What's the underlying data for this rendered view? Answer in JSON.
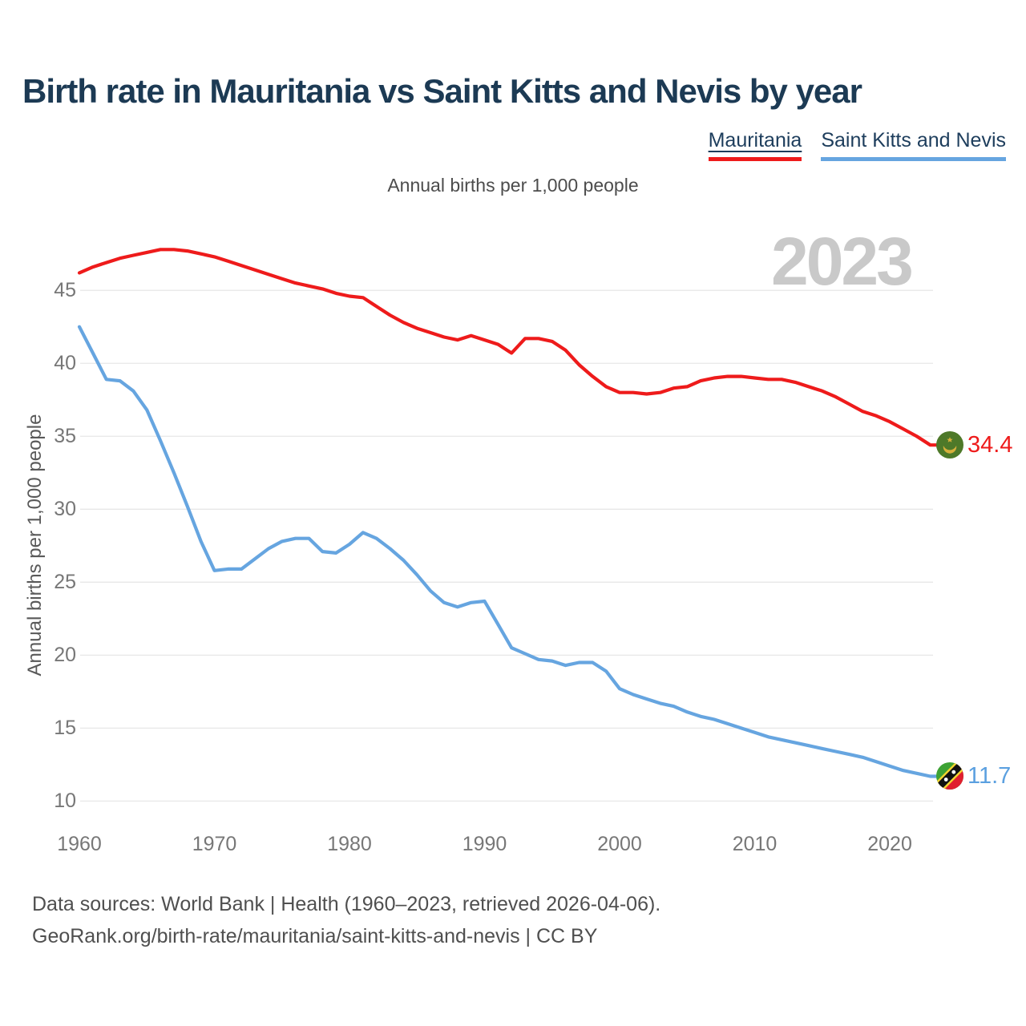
{
  "page": {
    "title": "Birth rate in Mauritania vs Saint Kitts and Nevis by year",
    "subtitle": "Annual births per 1,000 people",
    "watermark": "2023",
    "footer_line1": "Data sources: World Bank | Health (1960–2023, retrieved 2026-04-06).",
    "footer_line2": "GeoRank.org/birth-rate/mauritania/saint-kitts-and-nevis | CC BY"
  },
  "legend": [
    {
      "label": "Mauritania",
      "color": "#ee1b1b"
    },
    {
      "label": "Saint Kitts and Nevis",
      "color": "#66a5e0"
    }
  ],
  "chart_data": {
    "type": "line",
    "title": "Birth rate in Mauritania vs Saint Kitts and Nevis by year",
    "subtitle": "Annual births per 1,000 people",
    "ylabel": "Annual births per 1,000 people",
    "xlabel": "",
    "xlim": [
      1960,
      2023
    ],
    "ylim": [
      10,
      48
    ],
    "x_ticks": [
      1960,
      1970,
      1980,
      1990,
      2000,
      2010,
      2020
    ],
    "y_ticks": [
      10,
      15,
      20,
      25,
      30,
      35,
      40,
      45
    ],
    "grid": "horizontal",
    "gridline_color": "#e7e7e7",
    "legend_position": "top-right",
    "x": [
      1960,
      1961,
      1962,
      1963,
      1964,
      1965,
      1966,
      1967,
      1968,
      1969,
      1970,
      1971,
      1972,
      1973,
      1974,
      1975,
      1976,
      1977,
      1978,
      1979,
      1980,
      1981,
      1982,
      1983,
      1984,
      1985,
      1986,
      1987,
      1988,
      1989,
      1990,
      1991,
      1992,
      1993,
      1994,
      1995,
      1996,
      1997,
      1998,
      1999,
      2000,
      2001,
      2002,
      2003,
      2004,
      2005,
      2006,
      2007,
      2008,
      2009,
      2010,
      2011,
      2012,
      2013,
      2014,
      2015,
      2016,
      2017,
      2018,
      2019,
      2020,
      2021,
      2022,
      2023
    ],
    "series": [
      {
        "name": "Mauritania",
        "color": "#ee1b1b",
        "end_label": "34.4",
        "flag": "mauritania-flag",
        "values": [
          46.2,
          46.6,
          46.9,
          47.2,
          47.4,
          47.6,
          47.8,
          47.8,
          47.7,
          47.5,
          47.3,
          47.0,
          46.7,
          46.4,
          46.1,
          45.8,
          45.5,
          45.3,
          45.1,
          44.8,
          44.6,
          44.5,
          43.9,
          43.3,
          42.8,
          42.4,
          42.1,
          41.8,
          41.6,
          41.9,
          41.6,
          41.3,
          40.7,
          41.7,
          41.7,
          41.5,
          40.9,
          39.9,
          39.1,
          38.4,
          38.0,
          38.0,
          37.9,
          38.0,
          38.3,
          38.4,
          38.8,
          39.0,
          39.1,
          39.1,
          39.0,
          38.9,
          38.9,
          38.7,
          38.4,
          38.1,
          37.7,
          37.2,
          36.7,
          36.4,
          36.0,
          35.5,
          35.0,
          34.4
        ]
      },
      {
        "name": "Saint Kitts and Nevis",
        "color": "#66a5e0",
        "end_label": "11.7",
        "flag": "saint-kitts-and-nevis-flag",
        "values": [
          42.5,
          40.7,
          38.9,
          38.8,
          38.1,
          36.8,
          34.7,
          32.5,
          30.2,
          27.8,
          25.8,
          25.9,
          25.9,
          26.6,
          27.3,
          27.8,
          28.0,
          28.0,
          27.1,
          27.0,
          27.6,
          28.4,
          28.0,
          27.3,
          26.5,
          25.5,
          24.4,
          23.6,
          23.3,
          23.6,
          23.7,
          22.1,
          20.5,
          20.1,
          19.7,
          19.6,
          19.3,
          19.5,
          19.5,
          18.9,
          17.7,
          17.3,
          17.0,
          16.7,
          16.5,
          16.1,
          15.8,
          15.6,
          15.3,
          15.0,
          14.7,
          14.4,
          14.2,
          14.0,
          13.8,
          13.6,
          13.4,
          13.2,
          13.0,
          12.7,
          12.4,
          12.1,
          11.9,
          11.7
        ]
      }
    ]
  }
}
